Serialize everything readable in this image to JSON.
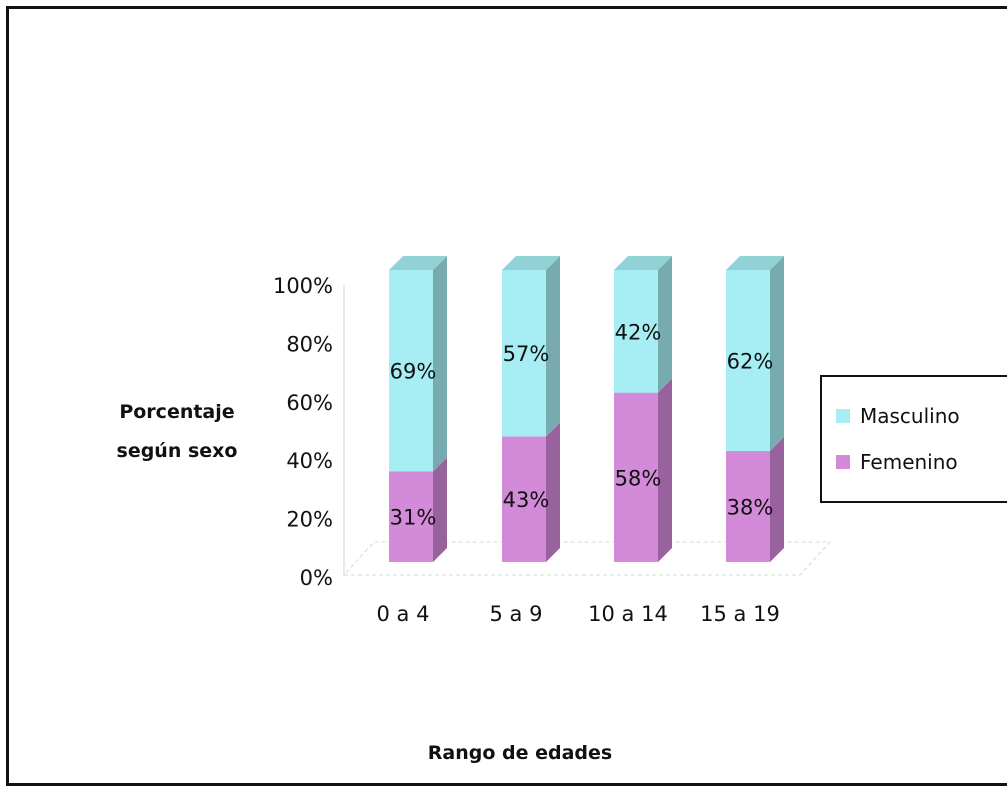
{
  "chart_data": {
    "type": "bar",
    "stacked": true,
    "percent": true,
    "categories": [
      "0 a 4",
      "5 a 9",
      "10 a 14",
      "15 a 19"
    ],
    "series": [
      {
        "name": "Femenino",
        "values": [
          31,
          43,
          58,
          38
        ],
        "labels": [
          "31%",
          "43%",
          "58%",
          "38%"
        ],
        "color": "#d38ad9"
      },
      {
        "name": "Masculino",
        "values": [
          69,
          57,
          42,
          62
        ],
        "labels": [
          "69%",
          "57%",
          "42%",
          "62%"
        ],
        "color": "#a6eef3"
      }
    ],
    "ylabel": "Porcentaje\nsegún sexo",
    "ylabel_lines": [
      "Porcentaje",
      "según sexo"
    ],
    "xlabel": "Rango de edades",
    "yticks": [
      "0%",
      "20%",
      "40%",
      "60%",
      "80%",
      "100%"
    ],
    "ylim": [
      0,
      100
    ],
    "legend_position": "right",
    "grid": false,
    "style": "3d-column"
  },
  "legend": {
    "items": [
      {
        "name": "Masculino",
        "color": "#a6eef3"
      },
      {
        "name": "Femenino",
        "color": "#d38ad9"
      }
    ]
  }
}
